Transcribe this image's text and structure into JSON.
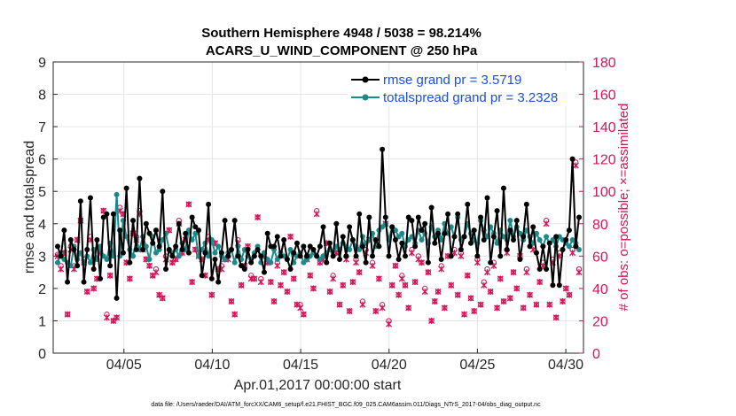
{
  "chart_data": {
    "type": "line",
    "title_line1": "Southern Hemisphere 4948 / 5038 = 98.214%",
    "title_line2": "ACARS_U_WIND_COMPONENT @ 250 hPa",
    "ylabel_left": "rmse and totalspread",
    "ylabel_right": "# of obs: o=possible; ×=assimilated",
    "xlabel": "Apr.01,2017 00:00:00 start",
    "footer": "data file: /Users/raeder/DAI/ATM_forcXX/CAM6_setup/f.e21.FHIST_BGC.f09_025.CAM6assim.011/Diags_NTrS_2017-04/obs_diag_output.nc",
    "ylim_left": [
      0,
      9
    ],
    "ylim_right": [
      0,
      180
    ],
    "xlim": [
      1,
      31
    ],
    "yticks_left": [
      "0",
      "1",
      "2",
      "3",
      "4",
      "5",
      "6",
      "7",
      "8",
      "9"
    ],
    "yticks_right": [
      "0",
      "20",
      "40",
      "60",
      "80",
      "100",
      "120",
      "140",
      "160",
      "180"
    ],
    "xticks": [
      {
        "x": 5,
        "label": "04/05"
      },
      {
        "x": 10,
        "label": "04/10"
      },
      {
        "x": 15,
        "label": "04/15"
      },
      {
        "x": 20,
        "label": "04/20"
      },
      {
        "x": 25,
        "label": "04/25"
      },
      {
        "x": 30,
        "label": "04/30"
      }
    ],
    "legend_position": "top-right",
    "grid": true,
    "series": [
      {
        "name": "rmse grand pr = 3.5719",
        "color": "#000000",
        "values": [
          3.3,
          3.0,
          3.8,
          2.2,
          3.5,
          3.2,
          2.7,
          4.7,
          2.2,
          3.2,
          4.8,
          2.6,
          3.5,
          2.3,
          4.2,
          4.3,
          2.7,
          4.3,
          1.7,
          3.8,
          3.1,
          5.1,
          2.8,
          4.1,
          3.2,
          5.4,
          3.2,
          4.0,
          3.7,
          3.4,
          3.8,
          3.3,
          5.0,
          2.6,
          3.2,
          3.0,
          3.3,
          4.0,
          3.2,
          3.7,
          3.1,
          4.2,
          3.9,
          3.8,
          2.4,
          3.1,
          4.6,
          2.3,
          2.9,
          2.2,
          3.1,
          4.1,
          3.0,
          3.2,
          4.1,
          3.0,
          2.7,
          2.6,
          3.2,
          2.8,
          3.0,
          3.2,
          3.0,
          2.5,
          3.7,
          3.3,
          3.3,
          3.6,
          3.0,
          3.5,
          2.9,
          2.6,
          3.1,
          3.4,
          3.0,
          3.3,
          3.0,
          3.3,
          3.2,
          3.0,
          3.3,
          3.9,
          2.8,
          3.4,
          3.0,
          4.0,
          2.9,
          3.6,
          3.0,
          3.9,
          3.5,
          3.0,
          4.3,
          3.3,
          2.8,
          4.2,
          3.0,
          3.5,
          3.3,
          6.3,
          4.2,
          3.0,
          3.9,
          3.5,
          2.9,
          3.4,
          3.0,
          4.2,
          4.1,
          3.3,
          4.2,
          3.8,
          4.0,
          2.8,
          4.5,
          3.4,
          3.7,
          2.9,
          3.7,
          4.3,
          3.0,
          3.6,
          4.3,
          3.2,
          3.6,
          4.6,
          3.4,
          3.8,
          3.0,
          4.2,
          3.5,
          4.8,
          2.8,
          3.6,
          4.4,
          3.0,
          5.1,
          3.2,
          3.8,
          3.5,
          4.1,
          2.9,
          3.6,
          4.6,
          3.3,
          3.9,
          3.1,
          2.6,
          3.3,
          2.6,
          3.4,
          2.1,
          3.6,
          2.1,
          3.2,
          3.5,
          3.8,
          6.0,
          3.3,
          4.2
        ],
        "min_color": "#000000"
      },
      {
        "name": "totalspread grand pr = 3.2328",
        "color": "#1a8a8a",
        "values": [
          2.8,
          3.1,
          2.9,
          2.8,
          2.7,
          3.3,
          2.9,
          3.1,
          2.8,
          3.0,
          2.8,
          3.2,
          2.9,
          3.3,
          3.0,
          2.9,
          3.4,
          3.0,
          4.9,
          3.0,
          4.1,
          3.6,
          3.2,
          3.0,
          3.5,
          3.2,
          3.6,
          3.3,
          2.9,
          3.6,
          3.1,
          3.2,
          3.5,
          3.7,
          3.2,
          3.1,
          3.2,
          3.0,
          3.4,
          3.2,
          3.8,
          3.5,
          3.7,
          3.0,
          3.2,
          3.4,
          3.0,
          3.5,
          3.1,
          3.3,
          3.0,
          2.9,
          3.1,
          3.2,
          2.8,
          3.3,
          2.9,
          3.2,
          3.0,
          2.9,
          3.1,
          3.3,
          2.8,
          3.1,
          2.9,
          2.8,
          3.2,
          2.9,
          3.1,
          3.0,
          2.9,
          3.2,
          2.8,
          3.0,
          3.1,
          2.8,
          2.9,
          3.0,
          3.1,
          3.0,
          2.9,
          3.0,
          3.1,
          3.2,
          3.0,
          3.3,
          3.2,
          3.4,
          3.3,
          3.2,
          3.5,
          3.3,
          3.2,
          3.6,
          3.4,
          3.5,
          3.7,
          3.3,
          3.8,
          3.9,
          4.0,
          3.5,
          3.9,
          3.8,
          3.6,
          3.7,
          3.3,
          3.5,
          3.6,
          3.4,
          3.8,
          3.5,
          3.7,
          3.4,
          3.9,
          3.6,
          3.8,
          3.5,
          4.0,
          3.7,
          3.9,
          3.6,
          4.2,
          3.5,
          3.6,
          4.0,
          3.7,
          3.5,
          3.4,
          4.1,
          3.8,
          3.6,
          3.9,
          3.7,
          3.4,
          3.8,
          3.6,
          3.5,
          4.1,
          3.6,
          3.9,
          3.7,
          3.5,
          3.8,
          3.6,
          3.4,
          3.7,
          3.5,
          3.3,
          3.6,
          3.4,
          3.5,
          3.3,
          3.6,
          3.5,
          3.4,
          3.3,
          3.5,
          3.4,
          3.2
        ],
        "min_color": "#1a8a8a"
      }
    ],
    "obs_possible": [
      61,
      54,
      62,
      24,
      66,
      54,
      70,
      82,
      58,
      38,
      72,
      40,
      46,
      63,
      88,
      24,
      48,
      20,
      22,
      90,
      86,
      56,
      46,
      74,
      72,
      88,
      64,
      58,
      54,
      48,
      52,
      36,
      34,
      60,
      76,
      56,
      58,
      82,
      62,
      70,
      92,
      44,
      64,
      62,
      58,
      48,
      72,
      36,
      68,
      52,
      54,
      58,
      60,
      32,
      24,
      70,
      42,
      54,
      66,
      48,
      46,
      84,
      46,
      62,
      56,
      44,
      32,
      56,
      42,
      50,
      38,
      72,
      46,
      30,
      30,
      24,
      58,
      48,
      40,
      88,
      56,
      60,
      68,
      38,
      48,
      62,
      30,
      42,
      60,
      26,
      44,
      58,
      50,
      32,
      64,
      70,
      56,
      26,
      46,
      30,
      80,
      20,
      42,
      54,
      36,
      48,
      42,
      28,
      64,
      44,
      60,
      56,
      40,
      50,
      20,
      32,
      38,
      54,
      28,
      60,
      42,
      64,
      36,
      62,
      24,
      48,
      34,
      26,
      58,
      30,
      44,
      52,
      38,
      56,
      28,
      46,
      32,
      64,
      34,
      50,
      40,
      60,
      28,
      52,
      36,
      66,
      30,
      44,
      56,
      82,
      30,
      58,
      22,
      62,
      32,
      40,
      36,
      64,
      118,
      52
    ],
    "obs_assimilated": [
      60,
      52,
      62,
      24,
      64,
      52,
      70,
      82,
      56,
      38,
      70,
      40,
      46,
      62,
      88,
      22,
      48,
      20,
      22,
      88,
      86,
      56,
      46,
      74,
      70,
      86,
      64,
      58,
      54,
      48,
      50,
      36,
      34,
      58,
      76,
      56,
      58,
      80,
      62,
      70,
      92,
      44,
      64,
      60,
      58,
      48,
      70,
      36,
      68,
      52,
      52,
      58,
      58,
      32,
      24,
      68,
      42,
      54,
      66,
      46,
      46,
      84,
      44,
      60,
      56,
      44,
      32,
      54,
      42,
      50,
      38,
      72,
      46,
      30,
      28,
      24,
      58,
      48,
      40,
      86,
      56,
      58,
      68,
      38,
      46,
      62,
      30,
      42,
      58,
      26,
      44,
      56,
      50,
      30,
      62,
      70,
      54,
      26,
      46,
      28,
      80,
      18,
      42,
      54,
      36,
      46,
      42,
      28,
      62,
      44,
      58,
      56,
      38,
      50,
      20,
      32,
      38,
      52,
      28,
      60,
      42,
      62,
      36,
      60,
      24,
      48,
      34,
      26,
      56,
      30,
      42,
      50,
      38,
      54,
      28,
      46,
      32,
      62,
      34,
      50,
      40,
      60,
      28,
      50,
      36,
      64,
      30,
      44,
      54,
      80,
      30,
      56,
      22,
      60,
      32,
      40,
      36,
      62,
      116,
      50
    ]
  }
}
